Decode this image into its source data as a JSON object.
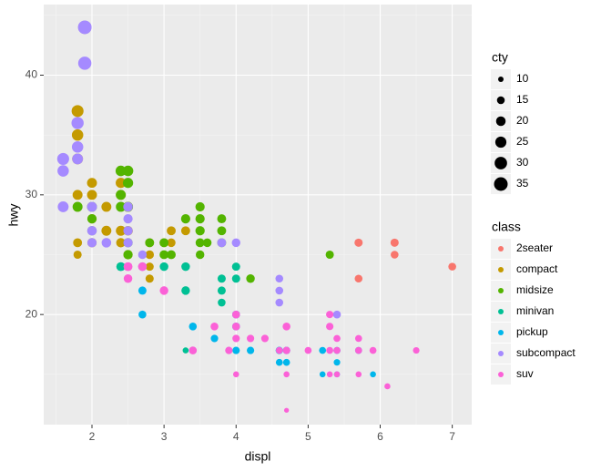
{
  "chart_data": {
    "type": "scatter",
    "x_label": "displ",
    "y_label": "hwy",
    "xlim": [
      1.33,
      7.27
    ],
    "ylim": [
      10.8,
      45.9
    ],
    "xticks": [
      2,
      3,
      4,
      5,
      6,
      7
    ],
    "yticks": [
      20,
      30,
      40
    ],
    "grid": true,
    "size_legend": {
      "title": "cty",
      "values": [
        10,
        15,
        20,
        25,
        30,
        35
      ]
    },
    "legend_title": "class",
    "series": [
      {
        "name": "2seater",
        "color": "#F8766D",
        "x": [
          5.7,
          5.7,
          6.2,
          6.2,
          7.0
        ],
        "values": [
          26,
          23,
          26,
          25,
          24
        ],
        "sizes": [
          16,
          15,
          16,
          15,
          15
        ]
      },
      {
        "name": "compact",
        "color": "#C49A00",
        "x": [
          1.8,
          1.8,
          1.8,
          1.8,
          1.8,
          1.8,
          1.8,
          2.0,
          2.0,
          2.0,
          2.0,
          2.2,
          2.2,
          2.4,
          2.4,
          2.4,
          2.4,
          2.5,
          2.5,
          2.5,
          2.8,
          2.8,
          2.8,
          2.8,
          3.0,
          3.1,
          3.1,
          3.3,
          1.9
        ],
        "values": [
          37,
          35,
          33,
          30,
          29,
          26,
          25,
          31,
          30,
          28,
          26,
          29,
          27,
          31,
          30,
          27,
          26,
          29,
          27,
          25,
          26,
          25,
          24,
          23,
          26,
          27,
          26,
          27,
          44
        ],
        "sizes": [
          28,
          26,
          24,
          21,
          20,
          18,
          16,
          21,
          21,
          19,
          19,
          21,
          21,
          22,
          21,
          21,
          19,
          21,
          20,
          19,
          18,
          17,
          16,
          16,
          18,
          18,
          17,
          18,
          33
        ]
      },
      {
        "name": "midsize",
        "color": "#53B400",
        "x": [
          1.8,
          2.0,
          2.0,
          2.0,
          2.4,
          2.4,
          2.4,
          2.5,
          2.5,
          2.5,
          2.5,
          2.5,
          2.8,
          3.0,
          3.0,
          3.1,
          3.3,
          3.5,
          3.5,
          3.5,
          3.5,
          3.5,
          3.6,
          3.8,
          3.8,
          3.8,
          4.2,
          5.3
        ],
        "values": [
          29,
          29,
          28,
          27,
          32,
          30,
          29,
          32,
          31,
          29,
          26,
          25,
          26,
          26,
          25,
          25,
          28,
          29,
          28,
          27,
          26,
          25,
          26,
          28,
          27,
          26,
          23,
          25
        ],
        "sizes": [
          21,
          21,
          19,
          19,
          23,
          21,
          21,
          23,
          22,
          21,
          19,
          19,
          18,
          18,
          18,
          18,
          19,
          19,
          19,
          19,
          18,
          17,
          17,
          18,
          18,
          18,
          17,
          16
        ]
      },
      {
        "name": "minivan",
        "color": "#00C094",
        "x": [
          2.4,
          3.0,
          3.3,
          3.3,
          3.8,
          3.8,
          3.8,
          4.0,
          4.0,
          3.3
        ],
        "values": [
          24,
          24,
          24,
          22,
          23,
          22,
          21,
          23,
          24,
          17
        ],
        "sizes": [
          18,
          17,
          17,
          17,
          16,
          16,
          15,
          16,
          16,
          11
        ]
      },
      {
        "name": "pickup",
        "color": "#00B6EB",
        "x": [
          2.7,
          2.7,
          3.4,
          3.4,
          3.7,
          3.9,
          4.0,
          4.0,
          4.0,
          4.2,
          4.6,
          4.6,
          4.7,
          4.7,
          5.2,
          5.2,
          5.4,
          5.4,
          5.4,
          5.7,
          5.9
        ],
        "values": [
          20,
          22,
          19,
          17,
          18,
          17,
          20,
          19,
          17,
          17,
          17,
          16,
          17,
          16,
          17,
          15,
          17,
          16,
          15,
          17,
          15
        ],
        "sizes": [
          15,
          16,
          15,
          14,
          14,
          13,
          15,
          15,
          14,
          14,
          14,
          13,
          14,
          13,
          13,
          11,
          13,
          12,
          11,
          13,
          11
        ]
      },
      {
        "name": "subcompact",
        "color": "#A58AFF",
        "x": [
          1.6,
          1.6,
          1.6,
          1.8,
          1.8,
          1.8,
          1.9,
          1.9,
          2.0,
          2.0,
          2.0,
          2.2,
          2.5,
          2.5,
          2.5,
          2.5,
          2.7,
          2.7,
          3.8,
          4.0,
          4.6,
          4.6,
          5.4,
          4.6
        ],
        "values": [
          33,
          32,
          29,
          36,
          34,
          33,
          44,
          41,
          29,
          27,
          26,
          26,
          29,
          28,
          27,
          26,
          24,
          25,
          26,
          26,
          23,
          22,
          20,
          21
        ],
        "sizes": [
          28,
          26,
          24,
          29,
          26,
          24,
          35,
          33,
          21,
          20,
          19,
          20,
          20,
          19,
          19,
          19,
          17,
          17,
          18,
          17,
          15,
          15,
          15,
          15
        ]
      },
      {
        "name": "suv",
        "color": "#FB61D7",
        "x": [
          2.5,
          2.5,
          2.7,
          3.0,
          3.4,
          3.7,
          3.9,
          4.0,
          4.0,
          4.0,
          4.0,
          4.2,
          4.4,
          4.6,
          4.7,
          4.7,
          4.7,
          4.7,
          5.0,
          5.3,
          5.3,
          5.3,
          5.3,
          5.4,
          5.4,
          5.4,
          5.7,
          5.7,
          5.9,
          6.1,
          6.5,
          5.7
        ],
        "values": [
          24,
          23,
          24,
          22,
          17,
          19,
          17,
          20,
          19,
          18,
          15,
          18,
          18,
          17,
          19,
          17,
          15,
          12,
          17,
          20,
          19,
          17,
          15,
          18,
          17,
          15,
          18,
          17,
          17,
          14,
          17,
          15
        ],
        "sizes": [
          18,
          17,
          17,
          17,
          15,
          15,
          14,
          15,
          15,
          14,
          11,
          14,
          14,
          13,
          15,
          14,
          11,
          9,
          13,
          14,
          14,
          13,
          11,
          13,
          13,
          11,
          13,
          13,
          13,
          11,
          12,
          11
        ]
      }
    ]
  }
}
